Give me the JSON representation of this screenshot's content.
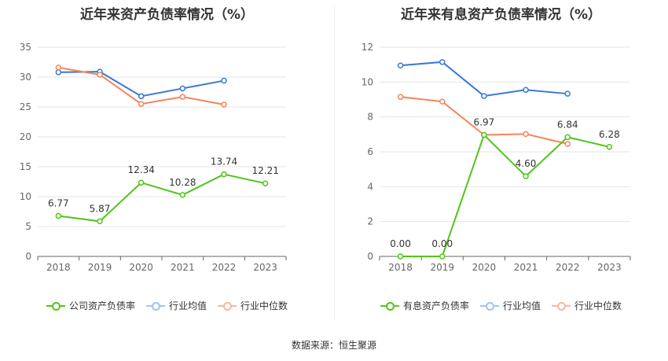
{
  "chart_data": [
    {
      "type": "line",
      "title": "近年来资产负债率情况（%）",
      "categories": [
        "2018",
        "2019",
        "2020",
        "2021",
        "2022",
        "2023"
      ],
      "ylim": [
        0,
        35
      ],
      "yticks": [
        0,
        5,
        10,
        15,
        20,
        25,
        30,
        35
      ],
      "grid": true,
      "legend_placement": "bottom",
      "series": [
        {
          "name": "公司资产负债率",
          "color": "#52c41a",
          "values": [
            6.77,
            5.87,
            12.34,
            10.28,
            13.74,
            12.21
          ],
          "labels": [
            "6.77",
            "5.87",
            "12.34",
            "10.28",
            "13.74",
            "12.21"
          ]
        },
        {
          "name": "行业均值",
          "color": "#3a78d8",
          "values": [
            30.8,
            30.9,
            26.8,
            28.1,
            29.4,
            null
          ]
        },
        {
          "name": "行业中位数",
          "color": "#f5845c",
          "values": [
            31.6,
            30.4,
            25.5,
            26.7,
            25.4,
            null
          ]
        }
      ]
    },
    {
      "type": "line",
      "title": "近年来有息资产负债率情况（%）",
      "categories": [
        "2018",
        "2019",
        "2020",
        "2021",
        "2022",
        "2023"
      ],
      "ylim": [
        0,
        12
      ],
      "yticks": [
        0,
        2,
        4,
        6,
        8,
        10,
        12
      ],
      "grid": true,
      "legend_placement": "bottom",
      "series": [
        {
          "name": "有息资产负债率",
          "color": "#52c41a",
          "values": [
            0.0,
            0.0,
            6.97,
            4.6,
            6.84,
            6.28
          ],
          "labels": [
            "0.00",
            "0.00",
            "6.97",
            "4.60",
            "6.84",
            "6.28"
          ]
        },
        {
          "name": "行业均值",
          "color": "#3a78d8",
          "values": [
            10.95,
            11.15,
            9.2,
            9.55,
            9.33,
            null
          ]
        },
        {
          "name": "行业中位数",
          "color": "#f5845c",
          "values": [
            9.15,
            8.88,
            6.97,
            7.02,
            6.45,
            null
          ]
        }
      ]
    }
  ],
  "legend_line_color": "#a0c4f5",
  "legend_median_color": "#f9b89c",
  "footer": {
    "source": "数据来源：恒生聚源"
  }
}
